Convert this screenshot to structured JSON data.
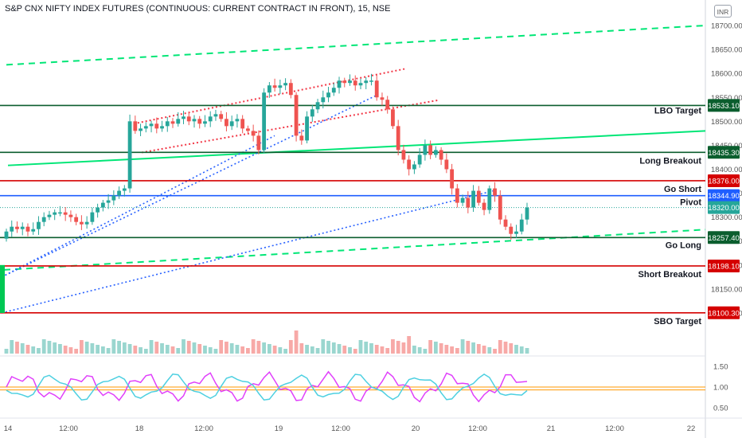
{
  "title": "S&P CNX NIFTY INDEX FUTURES (CONTINUOUS: CURRENT CONTRACT IN FRONT), 15, NSE",
  "currency_badge": "INR",
  "colors": {
    "up": "#26a69a",
    "down": "#ef5350",
    "green_line": "#00e676",
    "red_dotted": "#f23645",
    "blue_dotted": "#2962ff",
    "dark_green": "#0b5e2e",
    "red_level": "#d50000",
    "blue_level": "#1e5eff"
  },
  "chart_data": {
    "type": "candlestick",
    "title": "S&P CNX NIFTY INDEX FUTURES (CONTINUOUS: CURRENT CONTRACT IN FRONT), 15, NSE",
    "price_axis": {
      "min": 18080,
      "max": 18720,
      "ticks": [
        18700,
        18650,
        18600,
        18550,
        18500,
        18450,
        18400,
        18350,
        18300,
        18250,
        18200,
        18150,
        18100
      ]
    },
    "time_axis": {
      "ticks": [
        "14",
        "12:00",
        "18",
        "12:00",
        "19",
        "12:00",
        "20",
        "12:00",
        "21",
        "12:00",
        "22"
      ]
    },
    "levels": [
      {
        "label": "LBO Target",
        "value": 18533.1,
        "tag": "18533.10",
        "color": "#0b5e2e"
      },
      {
        "label": "Long Breakout",
        "value": 18435.3,
        "tag": "18435.30",
        "color": "#0b5e2e"
      },
      {
        "label": "Go Short",
        "value": 18376.0,
        "tag": "18376.00",
        "color": "#d50000"
      },
      {
        "label": "Pivot",
        "value": 18344.9,
        "tag": "18344.90",
        "color": "#1e5eff"
      },
      {
        "label": "Go Long",
        "value": 18257.4,
        "tag": "18257.40",
        "color": "#0b5e2e"
      },
      {
        "label": "Short Breakout",
        "value": 18198.1,
        "tag": "18198.10",
        "color": "#d50000"
      },
      {
        "label": "SBO Target",
        "value": 18100.3,
        "tag": "18100.30",
        "color": "#d50000"
      }
    ],
    "last_price": {
      "value": 18320.0,
      "tag": "18320.00"
    },
    "closes": [
      18270,
      18280,
      18275,
      18280,
      18270,
      18275,
      18290,
      18300,
      18305,
      18310,
      18310,
      18305,
      18300,
      18290,
      18285,
      18290,
      18310,
      18320,
      18330,
      18335,
      18345,
      18355,
      18360,
      18500,
      18480,
      18485,
      18490,
      18495,
      18485,
      18490,
      18500,
      18495,
      18505,
      18510,
      18500,
      18505,
      18495,
      18500,
      18510,
      18515,
      18505,
      18490,
      18500,
      18505,
      18485,
      18480,
      18470,
      18440,
      18560,
      18575,
      18570,
      18575,
      18580,
      18555,
      18470,
      18460,
      18510,
      18525,
      18540,
      18550,
      18560,
      18570,
      18585,
      18580,
      18585,
      18575,
      18580,
      18585,
      18585,
      18550,
      18545,
      18525,
      18490,
      18440,
      18420,
      18400,
      18410,
      18430,
      18450,
      18430,
      18440,
      18420,
      18400,
      18360,
      18330,
      18340,
      18320,
      18355,
      18330,
      18315,
      18360,
      18345,
      18295,
      18280,
      18265,
      18270,
      18295,
      18320
    ],
    "rsi_panel": {
      "ticks": [
        "1.50",
        "1.00",
        "0.50"
      ],
      "reference": 1.0
    }
  }
}
